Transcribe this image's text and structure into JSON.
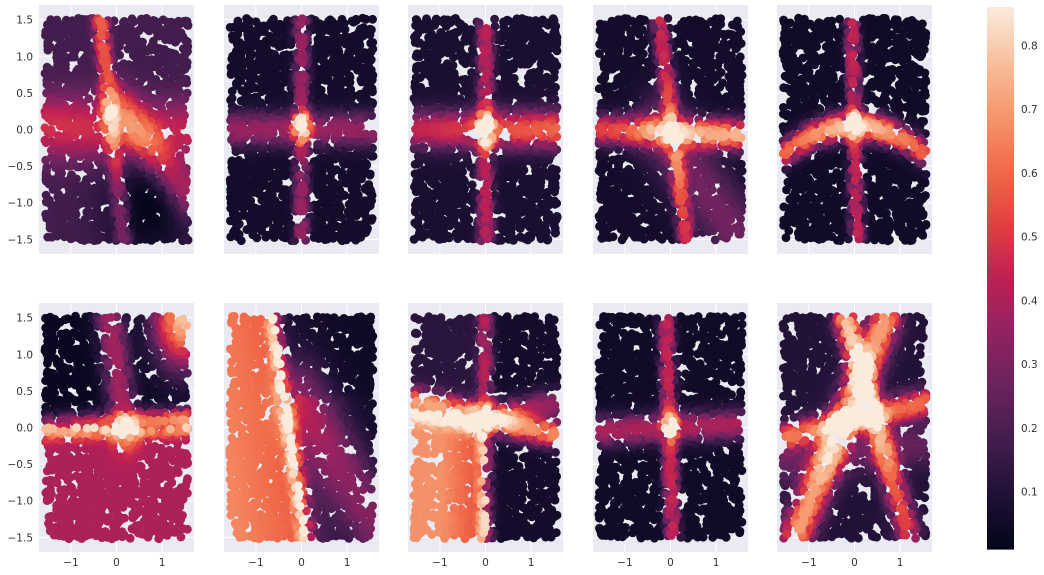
{
  "chart_data": {
    "type": "scatter",
    "style": "seaborn-darkgrid",
    "layout": "2 rows x 5 columns of scatter panels sharing axes",
    "point_color_by": "value",
    "colormap": "rocket",
    "x_ticks": [
      "−1",
      "0",
      "1"
    ],
    "x_tick_values": [
      -1,
      0,
      1
    ],
    "y_ticks": [
      "1.5",
      "1.0",
      "0.5",
      "0.0",
      "−0.5",
      "−1.0",
      "−1.5"
    ],
    "y_tick_values": [
      1.5,
      1.0,
      0.5,
      0.0,
      -0.5,
      -1.0,
      -1.5
    ],
    "xlim": [
      -1.7,
      1.7
    ],
    "ylim": [
      -1.7,
      1.7
    ],
    "data_extent": {
      "x": [
        -1.57,
        1.57
      ],
      "y": [
        -1.52,
        1.52
      ]
    },
    "colorbar": {
      "ticks": [
        "0.1",
        "0.2",
        "0.3",
        "0.4",
        "0.5",
        "0.6",
        "0.7",
        "0.8"
      ],
      "tick_values": [
        0.1,
        0.2,
        0.3,
        0.4,
        0.5,
        0.6,
        0.7,
        0.8
      ],
      "range": [
        0.01,
        0.86
      ]
    },
    "panels": [
      {
        "row": 0,
        "col": 0,
        "base": 0.18,
        "features": [
          {
            "type": "line",
            "p": [
              -0.35,
              1.5
            ],
            "q": [
              0.15,
              -1.5
            ],
            "amp": 0.45,
            "width": 0.1,
            "ends": [
              0.9,
              0.45
            ]
          },
          {
            "type": "line",
            "p": [
              0.0,
              0.35
            ],
            "q": [
              1.6,
              -0.9
            ],
            "amp": 0.28,
            "width": 0.2
          },
          {
            "type": "line",
            "p": [
              -1.6,
              0.05
            ],
            "q": [
              1.6,
              -0.05
            ],
            "amp": 0.3,
            "width": 0.3
          },
          {
            "type": "blob",
            "c": [
              0.7,
              -1.0
            ],
            "amp": -0.17,
            "width": 0.7
          }
        ]
      },
      {
        "row": 0,
        "col": 1,
        "base": 0.06,
        "features": [
          {
            "type": "line",
            "p": [
              0.0,
              1.5
            ],
            "q": [
              0.0,
              -1.5
            ],
            "amp": 0.3,
            "width": 0.1
          },
          {
            "type": "line",
            "p": [
              -1.6,
              0.0
            ],
            "q": [
              1.6,
              0.0
            ],
            "amp": 0.3,
            "width": 0.15
          },
          {
            "type": "blob",
            "c": [
              0.0,
              0.05
            ],
            "amp": 0.45,
            "width": 0.12
          }
        ]
      },
      {
        "row": 0,
        "col": 2,
        "base": 0.08,
        "features": [
          {
            "type": "line",
            "p": [
              0.0,
              1.5
            ],
            "q": [
              0.0,
              -1.5
            ],
            "amp": 0.35,
            "width": 0.1
          },
          {
            "type": "line",
            "p": [
              -1.6,
              0.0
            ],
            "q": [
              1.6,
              0.0
            ],
            "amp": 0.4,
            "width": 0.17,
            "ends": [
              0.9,
              1.3
            ]
          },
          {
            "type": "blob",
            "c": [
              0.0,
              0.0
            ],
            "amp": 0.35,
            "width": 0.15
          }
        ]
      },
      {
        "row": 0,
        "col": 3,
        "base": 0.06,
        "features": [
          {
            "type": "line",
            "p": [
              -0.25,
              1.5
            ],
            "q": [
              0.35,
              -1.5
            ],
            "amp": 0.4,
            "width": 0.1
          },
          {
            "type": "line",
            "p": [
              -1.6,
              0.0
            ],
            "q": [
              1.6,
              -0.08
            ],
            "amp": 0.5,
            "width": 0.13,
            "ends": [
              0.9,
              1.4
            ]
          },
          {
            "type": "line",
            "p": [
              -0.2,
              0.0
            ],
            "q": [
              1.4,
              -1.4
            ],
            "amp": 0.22,
            "width": 0.35
          }
        ]
      },
      {
        "row": 0,
        "col": 4,
        "base": 0.05,
        "features": [
          {
            "type": "line",
            "p": [
              -0.05,
              1.5
            ],
            "q": [
              0.05,
              -1.5
            ],
            "amp": 0.4,
            "width": 0.09
          },
          {
            "type": "curve",
            "amp": 0.75,
            "width": 0.12
          }
        ]
      },
      {
        "row": 1,
        "col": 0,
        "base": 0.03,
        "features": [
          {
            "type": "halfplane",
            "below": 0.0,
            "value": 0.4
          },
          {
            "type": "line",
            "p": [
              -1.6,
              0.0
            ],
            "q": [
              1.6,
              0.1
            ],
            "amp": 0.45,
            "width": 0.1,
            "ends": [
              0.8,
              1.5
            ]
          },
          {
            "type": "blob",
            "c": [
              1.5,
              1.5
            ],
            "amp": 0.75,
            "width": 0.45
          },
          {
            "type": "line",
            "p": [
              -0.15,
              1.5
            ],
            "q": [
              0.2,
              0.0
            ],
            "amp": 0.35,
            "width": 0.2
          }
        ]
      },
      {
        "row": 1,
        "col": 1,
        "base": 0.04,
        "features": [
          {
            "type": "leftregion",
            "value": 0.62
          },
          {
            "type": "line",
            "p": [
              -0.6,
              1.5
            ],
            "q": [
              0.1,
              -1.5
            ],
            "amp": 0.3,
            "width": 0.1
          },
          {
            "type": "line",
            "p": [
              0.0,
              0.4
            ],
            "q": [
              1.6,
              -1.3
            ],
            "amp": 0.25,
            "width": 0.35
          }
        ]
      },
      {
        "row": 1,
        "col": 2,
        "base": 0.06,
        "features": [
          {
            "type": "quadrant",
            "value": 0.62
          },
          {
            "type": "line",
            "p": [
              -1.6,
              0.35
            ],
            "q": [
              1.6,
              -0.1
            ],
            "amp": 0.6,
            "width": 0.12
          },
          {
            "type": "line",
            "p": [
              0.0,
              1.5
            ],
            "q": [
              0.0,
              -1.5
            ],
            "amp": 0.3,
            "width": 0.1
          },
          {
            "type": "line",
            "p": [
              -0.2,
              0.1
            ],
            "q": [
              1.6,
              0.35
            ],
            "amp": 0.3,
            "width": 0.12
          }
        ]
      },
      {
        "row": 1,
        "col": 3,
        "base": 0.05,
        "features": [
          {
            "type": "line",
            "p": [
              -0.1,
              1.5
            ],
            "q": [
              0.05,
              -1.5
            ],
            "amp": 0.4,
            "width": 0.1
          },
          {
            "type": "line",
            "p": [
              -1.6,
              -0.05
            ],
            "q": [
              1.6,
              0.05
            ],
            "amp": 0.35,
            "width": 0.13
          },
          {
            "type": "blob",
            "c": [
              0.0,
              0.0
            ],
            "amp": 0.4,
            "width": 0.1
          }
        ]
      },
      {
        "row": 1,
        "col": 4,
        "base": 0.1,
        "features": [
          {
            "type": "line",
            "p": [
              -0.2,
              1.5
            ],
            "q": [
              1.2,
              -1.5
            ],
            "amp": 0.5,
            "width": 0.15,
            "ends": [
              1.4,
              0.8
            ]
          },
          {
            "type": "line",
            "p": [
              0.7,
              1.5
            ],
            "q": [
              -1.3,
              -1.5
            ],
            "amp": 0.6,
            "width": 0.2
          },
          {
            "type": "line",
            "p": [
              -1.6,
              -0.15
            ],
            "q": [
              1.6,
              0.35
            ],
            "amp": 0.5,
            "width": 0.12
          },
          {
            "type": "line",
            "p": [
              -1.6,
              -0.5
            ],
            "q": [
              1.6,
              -0.2
            ],
            "amp": 0.15,
            "width": 0.2
          }
        ]
      }
    ]
  }
}
